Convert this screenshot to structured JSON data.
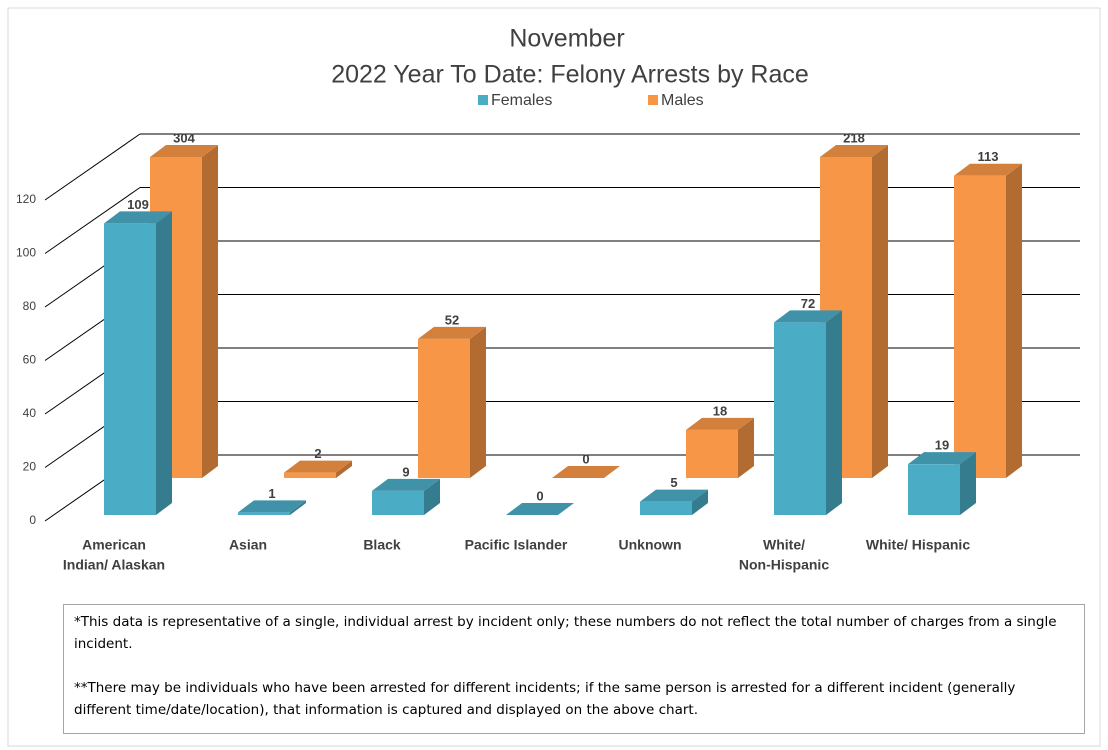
{
  "chart_data": {
    "type": "bar3d",
    "title": [
      "November",
      "2022 Year To Date: Felony Arrests by Race"
    ],
    "categories": [
      [
        "American",
        "Indian/ Alaskan"
      ],
      [
        "Asian"
      ],
      [
        "Black"
      ],
      [
        "Pacific Islander"
      ],
      [
        "Unknown"
      ],
      [
        "White/",
        "Non-Hispanic"
      ],
      [
        "White/ Hispanic"
      ]
    ],
    "series": [
      {
        "name": "Females",
        "color": "#4bacc6",
        "values": [
          109,
          1,
          9,
          0,
          5,
          72,
          19
        ]
      },
      {
        "name": "Males",
        "color": "#f79646",
        "values": [
          304,
          2,
          52,
          0,
          18,
          218,
          113
        ]
      }
    ],
    "ylim": [
      0,
      120
    ],
    "yticks": [
      0,
      20,
      40,
      60,
      80,
      100,
      120
    ],
    "grid": true
  },
  "notes": [
    "*This data is representative of a single, individual arrest by incident only; these numbers do not reflect the total number of charges from a single incident.",
    "**There may be individuals who have been arrested for different incidents; if the same person is arrested for a different incident (generally different time/date/location), that information is captured and displayed on the above chart."
  ]
}
